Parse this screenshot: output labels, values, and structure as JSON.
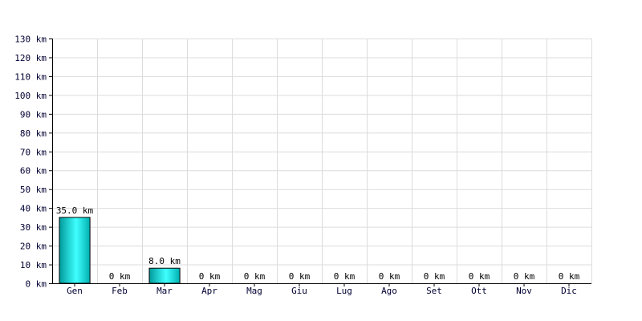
{
  "chart_data": {
    "type": "bar",
    "categories": [
      "Gen",
      "Feb",
      "Mar",
      "Apr",
      "Mag",
      "Giu",
      "Lug",
      "Ago",
      "Set",
      "Ott",
      "Nov",
      "Dic"
    ],
    "values": [
      35.0,
      0,
      8.0,
      0,
      0,
      0,
      0,
      0,
      0,
      0,
      0,
      0
    ],
    "data_labels": [
      "35.0 km",
      "0 km",
      "8.0 km",
      "0 km",
      "0 km",
      "0 km",
      "0 km",
      "0 km",
      "0 km",
      "0 km",
      "0 km",
      "0 km"
    ],
    "y_ticks": [
      {
        "value": 0,
        "label": "0 km"
      },
      {
        "value": 10,
        "label": "10 km"
      },
      {
        "value": 20,
        "label": "20 km"
      },
      {
        "value": 30,
        "label": "30 km"
      },
      {
        "value": 40,
        "label": "40 km"
      },
      {
        "value": 50,
        "label": "50 km"
      },
      {
        "value": 60,
        "label": "60 km"
      },
      {
        "value": 70,
        "label": "70 km"
      },
      {
        "value": 80,
        "label": "80 km"
      },
      {
        "value": 90,
        "label": "90 km"
      },
      {
        "value": 100,
        "label": "100 km"
      },
      {
        "value": 110,
        "label": "110 km"
      },
      {
        "value": 120,
        "label": "120 km"
      },
      {
        "value": 130,
        "label": "130 km"
      }
    ],
    "ylim": [
      0,
      130
    ],
    "title": "",
    "xlabel": "",
    "ylabel": "",
    "grid": true,
    "legend": "none",
    "colors": {
      "bar_dark": "#009a9a",
      "bar_light": "#40ffff",
      "grid": "#dcdcdc",
      "axis": "#000000",
      "tick_text": "#000033"
    }
  }
}
